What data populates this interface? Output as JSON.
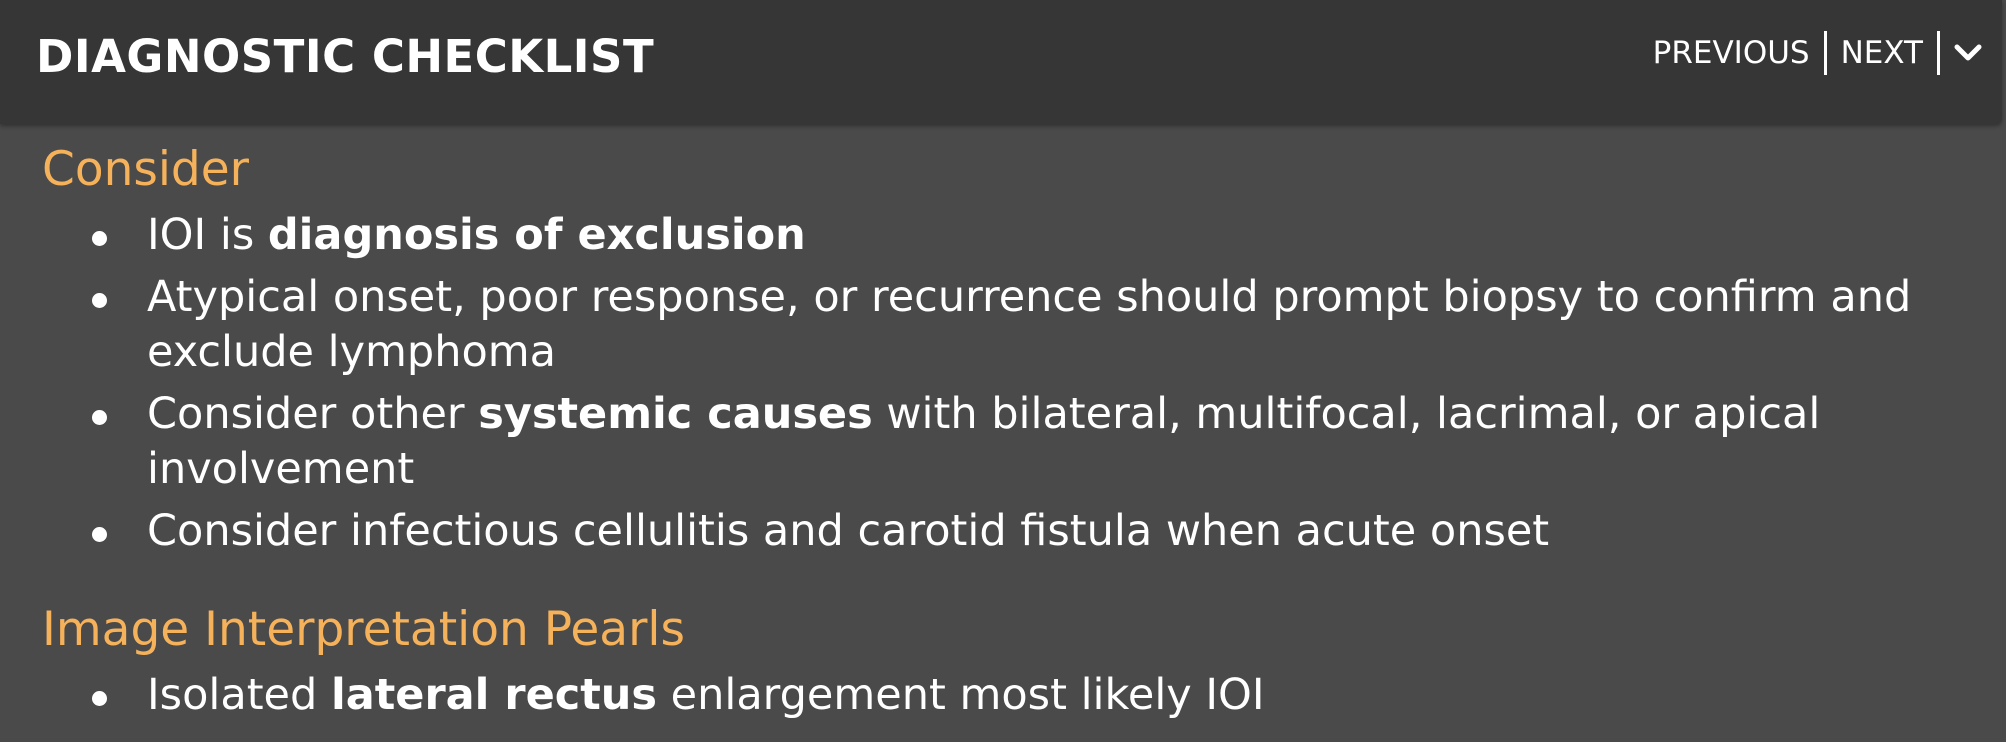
{
  "header": {
    "title": "DIAGNOSTIC CHECKLIST",
    "nav": {
      "previous_label": "PREVIOUS",
      "next_label": "NEXT",
      "collapse_icon": "chevron-down-icon"
    }
  },
  "sections": [
    {
      "heading": "Consider",
      "items": [
        {
          "p1": "IOI is ",
          "b1": "diagnosis of exclusion"
        },
        {
          "p1": "Atypical onset, poor response, or recurrence should prompt biopsy to confirm and exclude lymphoma"
        },
        {
          "p1": "Consider other ",
          "b1": "systemic causes",
          "p2": " with bilateral, multifocal, lacrimal, or apical involvement"
        },
        {
          "p1": "Consider infectious cellulitis and carotid fistula when acute onset"
        }
      ]
    },
    {
      "heading": "Image Interpretation Pearls",
      "items": [
        {
          "p1": "Isolated ",
          "b1": "lateral rectus",
          "p2": " enlargement most likely IOI"
        }
      ]
    }
  ],
  "colors": {
    "header_bg": "#363636",
    "body_bg": "#4a4a4a",
    "heading_accent": "#f6b25a",
    "text": "#ffffff"
  }
}
